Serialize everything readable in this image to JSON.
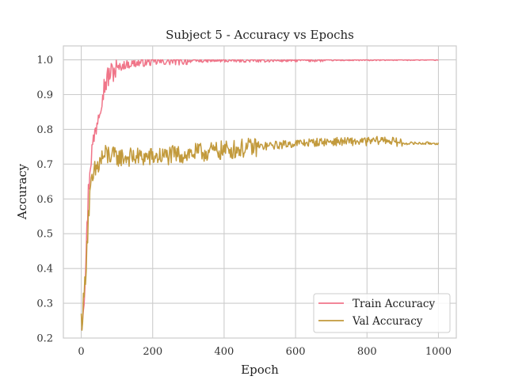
{
  "chart_data": {
    "type": "line",
    "title": "Subject 5 - Accuracy vs Epochs",
    "xlabel": "Epoch",
    "ylabel": "Accuracy",
    "xlim": [
      -50,
      1050
    ],
    "ylim": [
      0.2,
      1.04
    ],
    "xticks": [
      0,
      200,
      400,
      600,
      800,
      1000
    ],
    "yticks": [
      0.2,
      0.3,
      0.4,
      0.5,
      0.6,
      0.7,
      0.8,
      0.9,
      1.0
    ],
    "grid": true,
    "legend_position": "lower-right",
    "series": [
      {
        "name": "Train Accuracy",
        "color": "#f07589",
        "x": [
          0,
          5,
          10,
          15,
          20,
          25,
          30,
          40,
          50,
          60,
          70,
          80,
          100,
          120,
          150,
          200,
          250,
          300,
          400,
          500,
          600,
          700,
          800,
          900,
          1000
        ],
        "y": [
          0.24,
          0.28,
          0.36,
          0.48,
          0.62,
          0.7,
          0.74,
          0.8,
          0.86,
          0.91,
          0.94,
          0.96,
          0.975,
          0.985,
          0.99,
          0.995,
          0.996,
          0.997,
          0.998,
          0.998,
          0.999,
          0.999,
          0.999,
          1.0,
          1.0
        ]
      },
      {
        "name": "Val Accuracy",
        "color": "#c29a3c",
        "x": [
          0,
          5,
          10,
          15,
          20,
          25,
          30,
          40,
          50,
          60,
          80,
          100,
          150,
          200,
          300,
          400,
          500,
          600,
          700,
          800,
          850,
          900,
          1000
        ],
        "y": [
          0.25,
          0.28,
          0.35,
          0.45,
          0.55,
          0.61,
          0.64,
          0.68,
          0.7,
          0.72,
          0.725,
          0.72,
          0.72,
          0.72,
          0.73,
          0.74,
          0.75,
          0.76,
          0.765,
          0.765,
          0.77,
          0.76,
          0.76
        ]
      }
    ]
  }
}
